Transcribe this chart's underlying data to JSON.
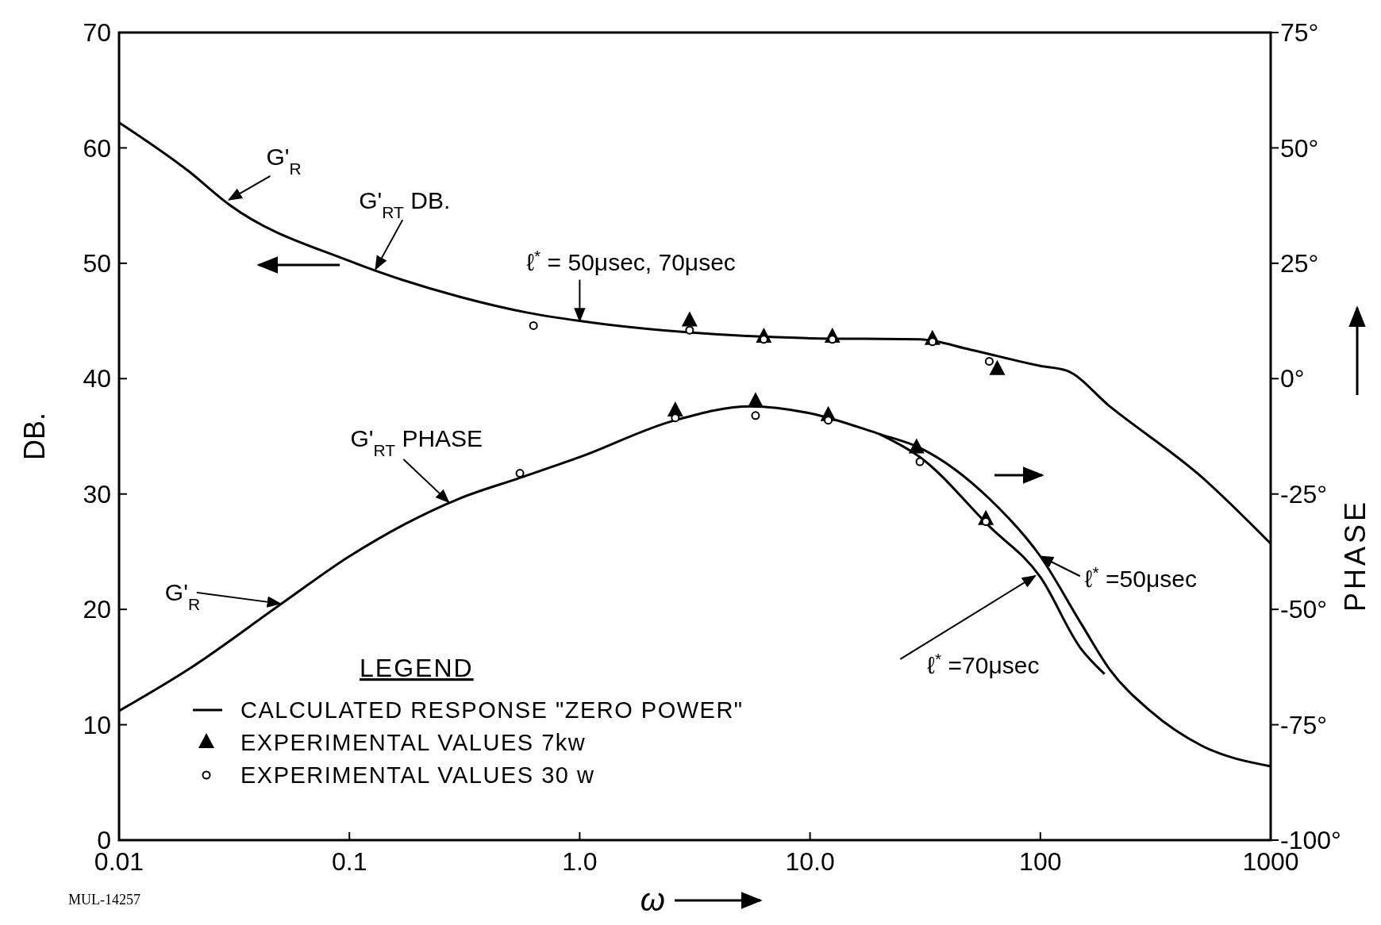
{
  "chart_data": {
    "type": "line",
    "xlabel": "ω",
    "ylabel": "DB.",
    "y2label": "PHASE",
    "legend_title": "LEGEND",
    "log": "x",
    "grid": false,
    "legend": "bottom left",
    "xlim": [
      0.01,
      1000
    ],
    "xticks": [
      0.01,
      0.1,
      {
        "value": 1,
        "label": "1.0"
      },
      {
        "value": 10,
        "label": "10.0"
      },
      100,
      1000
    ],
    "ylim": [
      0,
      70
    ],
    "yticks": [
      0,
      10,
      20,
      30,
      40,
      50,
      60,
      70
    ],
    "y2lim": [
      -100,
      75
    ],
    "y2ticks": [
      {
        "value": -100,
        "label": "-100°"
      },
      {
        "value": -75,
        "label": "-75°"
      },
      {
        "value": -50,
        "label": "-50°"
      },
      {
        "value": -25,
        "label": "-25°"
      },
      {
        "value": 0,
        "label": "0°"
      },
      {
        "value": 25,
        "label": "25°"
      },
      {
        "value": 50,
        "label": "50°"
      },
      {
        "value": 75,
        "label": "75°"
      }
    ],
    "series": [
      {
        "name": "CALCULATED RESPONSE \"ZERO POWER\"",
        "marker": "none",
        "color": "#000000",
        "x": [
          0.01,
          0.02,
          0.03,
          0.1,
          0.3,
          0.6,
          1,
          3,
          10,
          30,
          50,
          100,
          130,
          200,
          500,
          1000
        ],
        "values": [
          62.2,
          58,
          55.1,
          50.2,
          47.1,
          45.7,
          45,
          44,
          43.5,
          43.4,
          42.5,
          41.1,
          40.7,
          37.6,
          31.5,
          25.7
        ]
      },
      {
        "axis": "y2",
        "marker": "none",
        "color": "#000000",
        "x": [
          0.01,
          0.02,
          0.05,
          0.1,
          0.3,
          0.55,
          1,
          2.6,
          5.5,
          10,
          20,
          30,
          60,
          100,
          150,
          200,
          300,
          500,
          1000
        ],
        "values": [
          -72,
          -63,
          -49,
          -38.5,
          -26,
          -21.5,
          -17,
          -9,
          -6,
          -7.5,
          -12,
          -15,
          -26,
          -38.5,
          -53,
          -63,
          -72,
          -79.5,
          -84
        ]
      },
      {
        "axis": "y2",
        "marker": "none",
        "color": "#000000",
        "x": [
          20,
          30,
          60,
          100,
          150,
          190
        ],
        "values": [
          -12,
          -17,
          -32,
          -43,
          -58.5,
          -64
        ]
      },
      {
        "name": "EXPERIMENTAL VALUES 7kw",
        "type": "scatter",
        "marker": "triangle",
        "color": "#000000",
        "x": [
          3,
          6.3,
          12.5,
          34,
          65
        ],
        "values": [
          45,
          43.6,
          43.6,
          43.4,
          40.8
        ]
      },
      {
        "type": "scatter",
        "axis": "y2",
        "marker": "triangle",
        "color": "#000000",
        "x": [
          2.6,
          5.8,
          12,
          29,
          58
        ],
        "values": [
          -7,
          -5,
          -8,
          -15,
          -30.5
        ]
      },
      {
        "name": "EXPERIMENTAL VALUES 30 w",
        "type": "scatter",
        "marker": "circle",
        "color": "#000000",
        "x": [
          0.63,
          3,
          6.3,
          12.5,
          34,
          60
        ],
        "values": [
          44.6,
          44.2,
          43.4,
          43.4,
          43.2,
          41.5
        ]
      },
      {
        "type": "scatter",
        "axis": "y2",
        "marker": "circle",
        "color": "#000000",
        "x": [
          0.55,
          2.6,
          5.8,
          12,
          30,
          58
        ],
        "values": [
          -20.5,
          -8.5,
          -8,
          -9,
          -18,
          -31
        ]
      }
    ],
    "annotations": [
      {
        "text": "G'$_{R}$",
        "x": 0.03,
        "y": 55.5
      },
      {
        "text": "G'$_{RT}$ DB.",
        "x": 0.13,
        "y": 49.5
      },
      {
        "text": "ℓ$^{*}$ = 50μsec, 70μsec",
        "x": 1,
        "y": 45
      },
      {
        "text": "G'$_{RT}$ PHASE",
        "x": 0.27,
        "y": 29.3
      },
      {
        "text": "G'$_{R}$",
        "x": 0.05,
        "y": 20.5
      },
      {
        "text": "ℓ$^{*}$ =50μsec",
        "x": 100,
        "y": 24.6
      },
      {
        "text": "ℓ$^{*}$ =70μsec",
        "x": 95,
        "y": 22.9
      },
      "MUL-14257"
    ]
  }
}
